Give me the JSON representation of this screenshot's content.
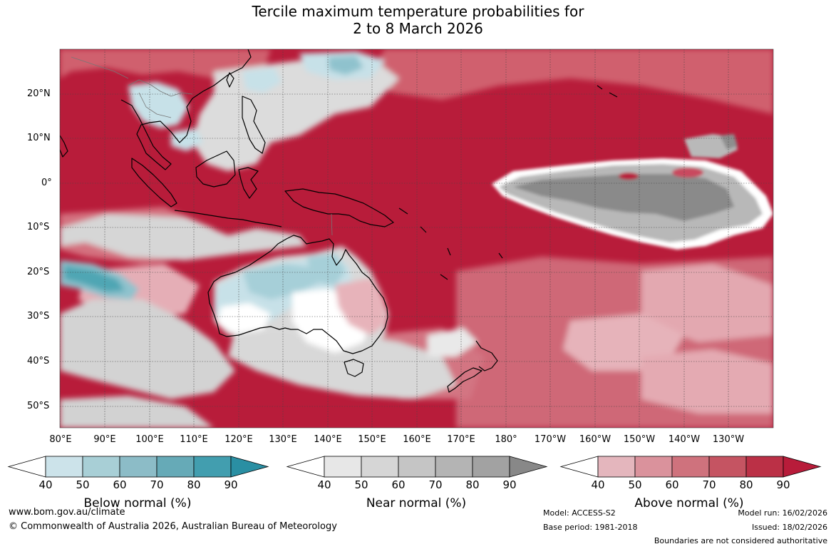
{
  "header": {
    "title_line1": "Tercile maximum temperature probabilities for",
    "title_line2": "2 to 8 March 2026"
  },
  "map": {
    "lat_labels": [
      "20°N",
      "10°N",
      "0°",
      "10°S",
      "20°S",
      "30°S",
      "40°S",
      "50°S"
    ],
    "lon_labels": [
      "80°E",
      "90°E",
      "100°E",
      "110°E",
      "120°E",
      "130°E",
      "140°E",
      "150°E",
      "160°E",
      "170°E",
      "180°",
      "170°W",
      "160°W",
      "150°W",
      "140°W",
      "130°W"
    ],
    "colors": {
      "above_strong": "#b81c3a",
      "above_mid": "#d0616e",
      "above_light": "#e6a6ae",
      "near_strong": "#8a8a8a",
      "near_light": "#d6d6d6",
      "below_light": "#c7e1e8",
      "below_mid": "#8fc2cd"
    }
  },
  "colorbars": [
    {
      "title": "Below normal (%)",
      "ticks": [
        "40",
        "50",
        "60",
        "70",
        "80",
        "90"
      ],
      "colors": [
        "#ffffff",
        "#cce3ea",
        "#a8cfd6",
        "#8cbcc7",
        "#66aab7",
        "#429eaf",
        "#2a8fa3"
      ]
    },
    {
      "title": "Near normal (%)",
      "ticks": [
        "40",
        "50",
        "60",
        "70",
        "80",
        "90"
      ],
      "colors": [
        "#ffffff",
        "#e7e7e7",
        "#d6d6d6",
        "#c5c5c5",
        "#b4b4b4",
        "#a2a2a2",
        "#888888"
      ]
    },
    {
      "title": "Above normal (%)",
      "ticks": [
        "40",
        "50",
        "60",
        "70",
        "80",
        "90"
      ],
      "colors": [
        "#ffffff",
        "#e4b6bd",
        "#da929c",
        "#cf727d",
        "#c55462",
        "#bb3046",
        "#b81c3a"
      ]
    }
  ],
  "footer": {
    "website": "www.bom.gov.au/climate",
    "copyright": "© Commonwealth of Australia 2026, Australian Bureau of Meteorology",
    "model": "Model: ACCESS-S2",
    "base_period": "Base period: 1981-2018",
    "model_run": "Model run: 16/02/2026",
    "issued": "Issued: 18/02/2026",
    "disclaimer": "Boundaries are not considered authoritative"
  }
}
